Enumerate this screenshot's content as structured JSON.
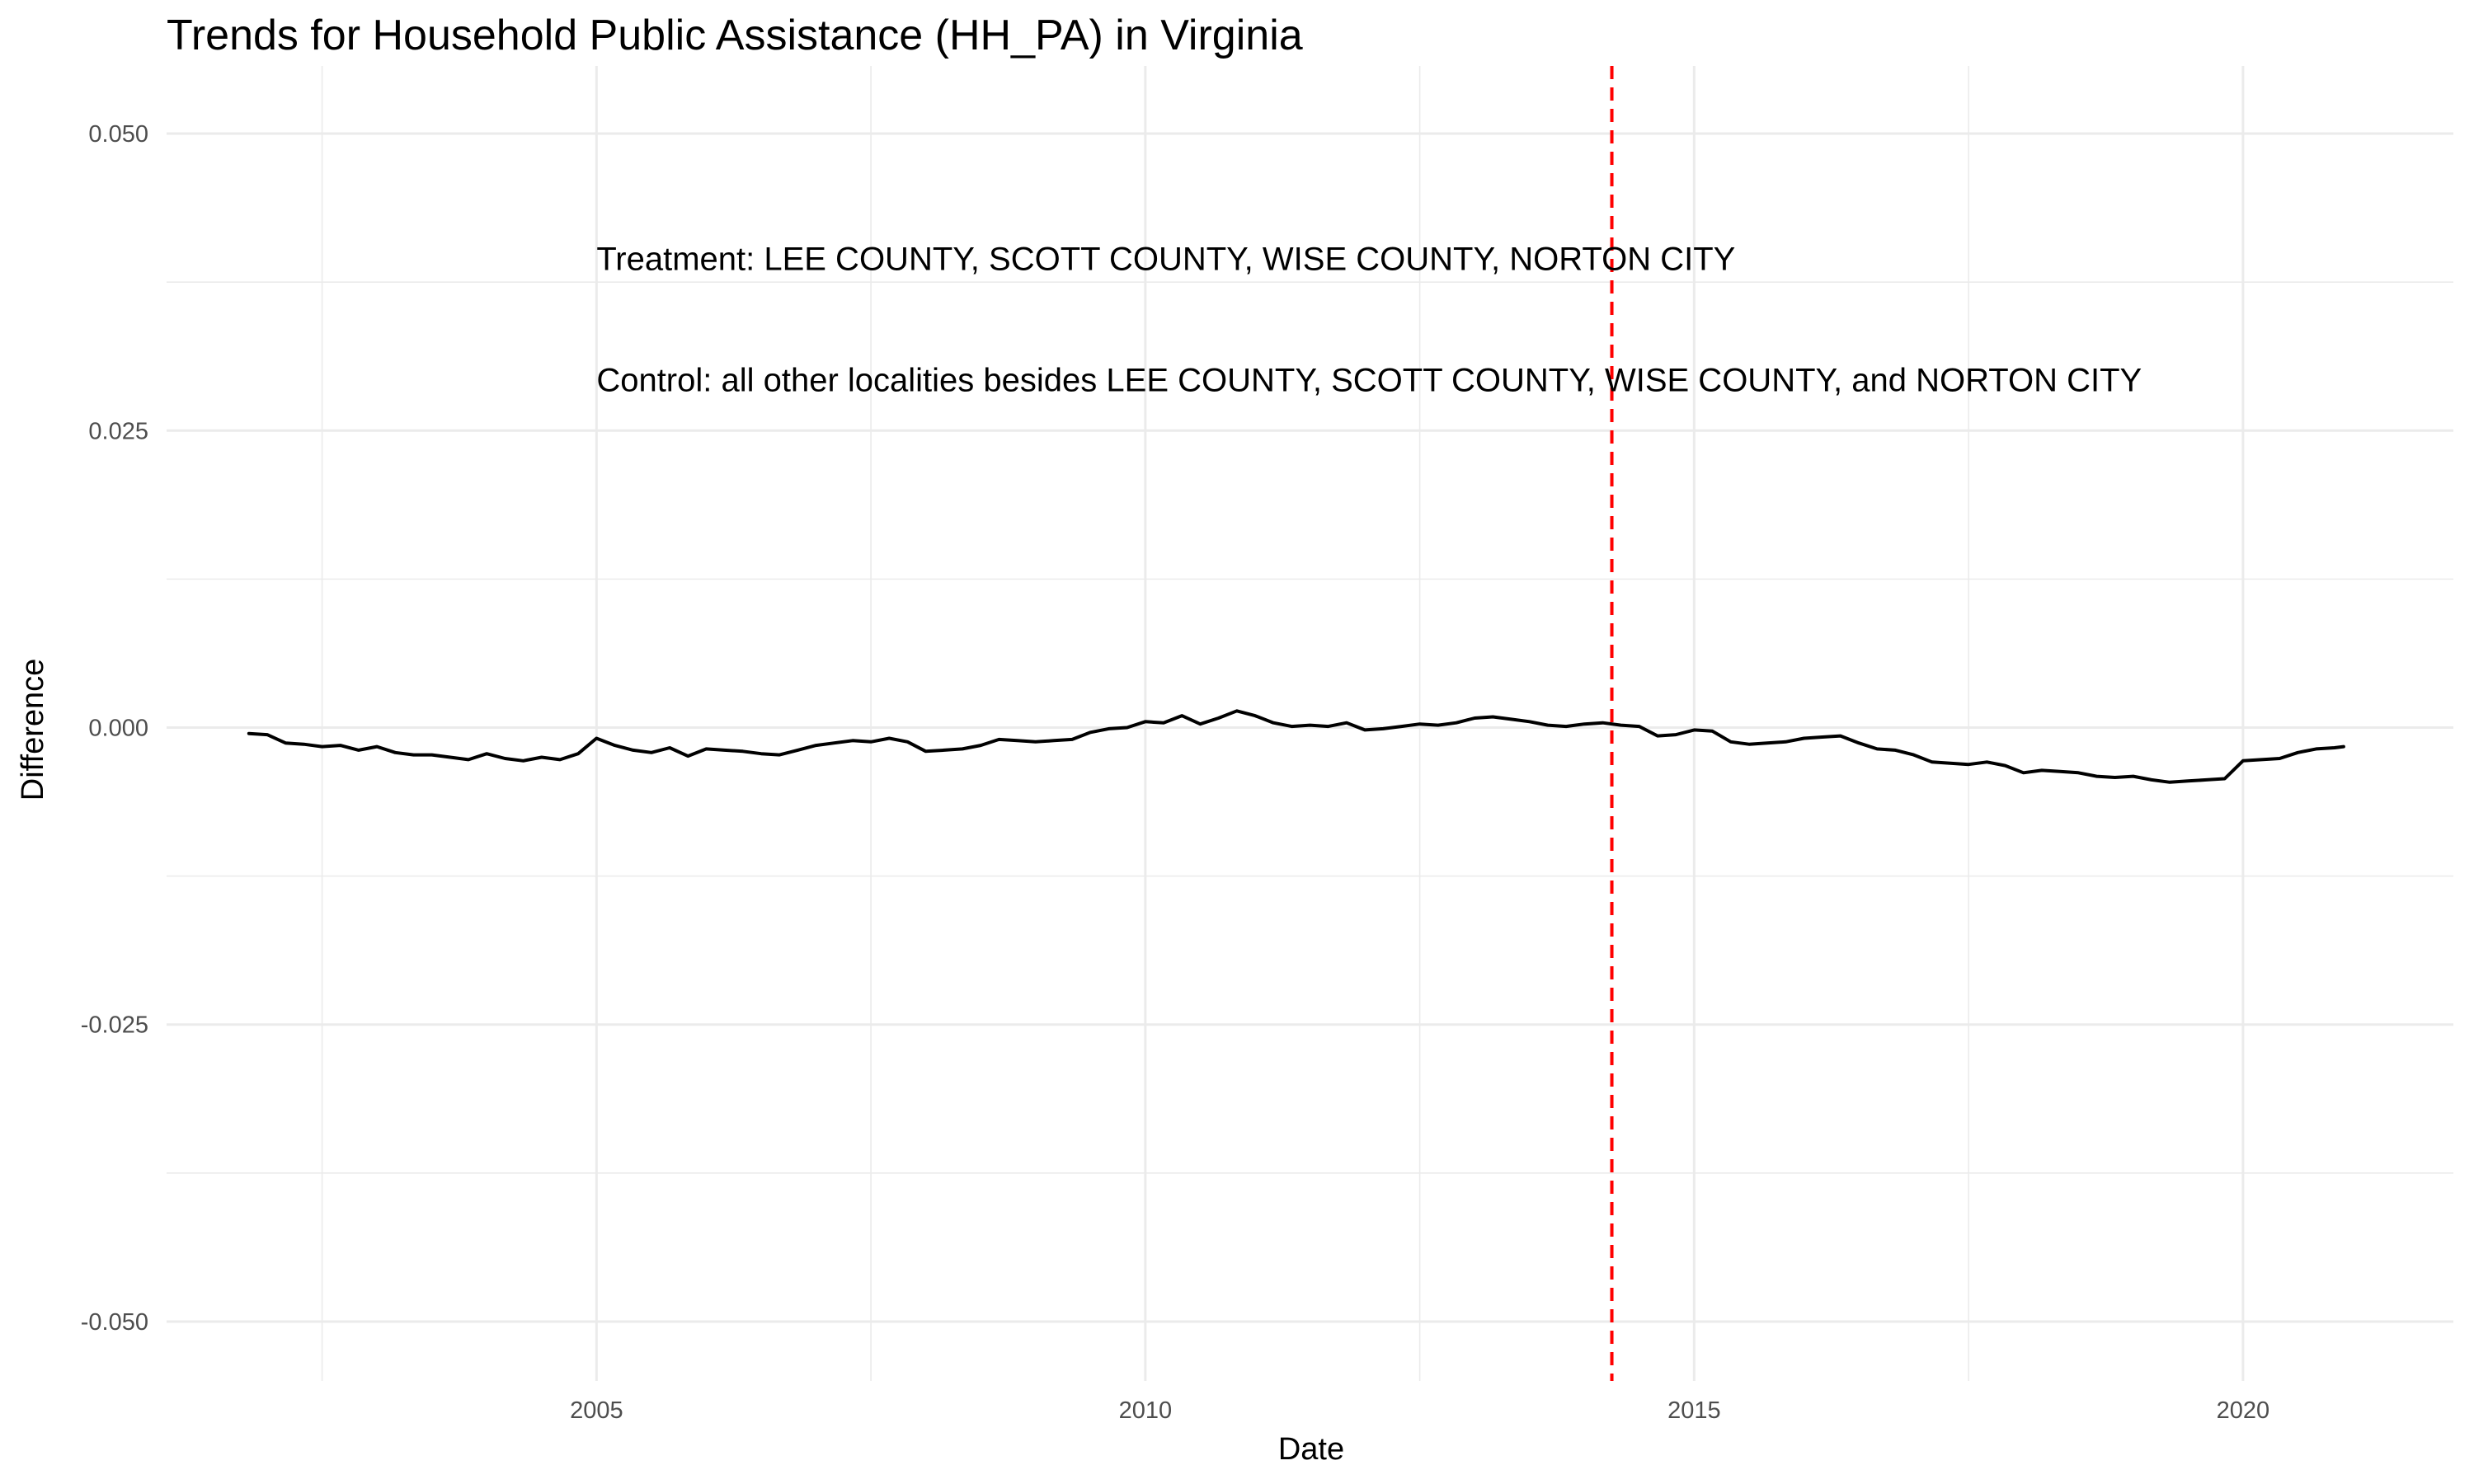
{
  "chart_data": {
    "type": "line",
    "title": "Trends for Household Public Assistance (HH_PA) in Virginia",
    "xlabel": "Date",
    "ylabel": "Difference",
    "xlim": [
      "2001-02-01",
      "2021-12-01"
    ],
    "ylim": [
      -0.055,
      0.055
    ],
    "x_ticks": [
      "2005",
      "2010",
      "2015",
      "2020"
    ],
    "y_ticks": [
      0.05,
      0.025,
      0.0,
      -0.025,
      -0.05
    ],
    "y_tick_labels": [
      "0.050",
      "0.025",
      "0.000",
      "-0.025",
      "-0.050"
    ],
    "grid": true,
    "series": [
      {
        "color": "#000000",
        "points": [
          [
            "2001-11",
            -0.0005
          ],
          [
            "2002-01",
            -0.0006
          ],
          [
            "2002-03",
            -0.0013
          ],
          [
            "2002-05",
            -0.0014
          ],
          [
            "2002-07",
            -0.0016
          ],
          [
            "2002-09",
            -0.0015
          ],
          [
            "2002-11",
            -0.0019
          ],
          [
            "2003-01",
            -0.0016
          ],
          [
            "2003-03",
            -0.0021
          ],
          [
            "2003-05",
            -0.0023
          ],
          [
            "2003-07",
            -0.0023
          ],
          [
            "2003-09",
            -0.0025
          ],
          [
            "2003-11",
            -0.0027
          ],
          [
            "2004-01",
            -0.0022
          ],
          [
            "2004-03",
            -0.0026
          ],
          [
            "2004-05",
            -0.0028
          ],
          [
            "2004-07",
            -0.0025
          ],
          [
            "2004-09",
            -0.0027
          ],
          [
            "2004-11",
            -0.0022
          ],
          [
            "2005-01",
            -0.0009
          ],
          [
            "2005-03",
            -0.0015
          ],
          [
            "2005-05",
            -0.0019
          ],
          [
            "2005-07",
            -0.0021
          ],
          [
            "2005-09",
            -0.0017
          ],
          [
            "2005-11",
            -0.0024
          ],
          [
            "2006-01",
            -0.0018
          ],
          [
            "2006-03",
            -0.0019
          ],
          [
            "2006-05",
            -0.002
          ],
          [
            "2006-07",
            -0.0022
          ],
          [
            "2006-09",
            -0.0023
          ],
          [
            "2006-11",
            -0.0019
          ],
          [
            "2007-01",
            -0.0015
          ],
          [
            "2007-03",
            -0.0013
          ],
          [
            "2007-05",
            -0.0011
          ],
          [
            "2007-07",
            -0.0012
          ],
          [
            "2007-09",
            -0.0009
          ],
          [
            "2007-11",
            -0.0012
          ],
          [
            "2008-01",
            -0.002
          ],
          [
            "2008-03",
            -0.0019
          ],
          [
            "2008-05",
            -0.0018
          ],
          [
            "2008-07",
            -0.0015
          ],
          [
            "2008-09",
            -0.001
          ],
          [
            "2008-11",
            -0.0011
          ],
          [
            "2009-01",
            -0.0012
          ],
          [
            "2009-03",
            -0.0011
          ],
          [
            "2009-05",
            -0.001
          ],
          [
            "2009-07",
            -0.0004
          ],
          [
            "2009-09",
            -0.0001
          ],
          [
            "2009-11",
            0.0
          ],
          [
            "2010-01",
            0.0005
          ],
          [
            "2010-03",
            0.0004
          ],
          [
            "2010-05",
            0.001
          ],
          [
            "2010-07",
            0.0003
          ],
          [
            "2010-09",
            0.0008
          ],
          [
            "2010-11",
            0.0014
          ],
          [
            "2011-01",
            0.001
          ],
          [
            "2011-03",
            0.0004
          ],
          [
            "2011-05",
            0.0001
          ],
          [
            "2011-07",
            0.0002
          ],
          [
            "2011-09",
            0.0001
          ],
          [
            "2011-11",
            0.0004
          ],
          [
            "2012-01",
            -0.0002
          ],
          [
            "2012-03",
            -0.0001
          ],
          [
            "2012-05",
            0.0001
          ],
          [
            "2012-07",
            0.0003
          ],
          [
            "2012-09",
            0.0002
          ],
          [
            "2012-11",
            0.0004
          ],
          [
            "2013-01",
            0.0008
          ],
          [
            "2013-03",
            0.0009
          ],
          [
            "2013-05",
            0.0007
          ],
          [
            "2013-07",
            0.0005
          ],
          [
            "2013-09",
            0.0002
          ],
          [
            "2013-11",
            0.0001
          ],
          [
            "2014-01",
            0.0003
          ],
          [
            "2014-03",
            0.0004
          ],
          [
            "2014-05",
            0.0002
          ],
          [
            "2014-07",
            0.0001
          ],
          [
            "2014-09",
            -0.0007
          ],
          [
            "2014-11",
            -0.0006
          ],
          [
            "2015-01",
            -0.0002
          ],
          [
            "2015-03",
            -0.0003
          ],
          [
            "2015-05",
            -0.0012
          ],
          [
            "2015-07",
            -0.0014
          ],
          [
            "2015-09",
            -0.0013
          ],
          [
            "2015-11",
            -0.0012
          ],
          [
            "2016-01",
            -0.0009
          ],
          [
            "2016-03",
            -0.0008
          ],
          [
            "2016-05",
            -0.0007
          ],
          [
            "2016-07",
            -0.0013
          ],
          [
            "2016-09",
            -0.0018
          ],
          [
            "2016-11",
            -0.0019
          ],
          [
            "2017-01",
            -0.0023
          ],
          [
            "2017-03",
            -0.0029
          ],
          [
            "2017-05",
            -0.003
          ],
          [
            "2017-07",
            -0.0031
          ],
          [
            "2017-09",
            -0.0029
          ],
          [
            "2017-11",
            -0.0032
          ],
          [
            "2018-01",
            -0.0038
          ],
          [
            "2018-03",
            -0.0036
          ],
          [
            "2018-05",
            -0.0037
          ],
          [
            "2018-07",
            -0.0038
          ],
          [
            "2018-09",
            -0.0041
          ],
          [
            "2018-11",
            -0.0042
          ],
          [
            "2019-01",
            -0.0041
          ],
          [
            "2019-03",
            -0.0044
          ],
          [
            "2019-05",
            -0.0046
          ],
          [
            "2019-07",
            -0.0045
          ],
          [
            "2019-09",
            -0.0044
          ],
          [
            "2019-11",
            -0.0043
          ],
          [
            "2020-01",
            -0.0028
          ],
          [
            "2020-03",
            -0.0027
          ],
          [
            "2020-05",
            -0.0026
          ],
          [
            "2020-07",
            -0.0021
          ],
          [
            "2020-09",
            -0.0018
          ],
          [
            "2020-11",
            -0.0017
          ],
          [
            "2020-12",
            -0.0016
          ]
        ]
      }
    ],
    "reference_line": {
      "x": "2014-04",
      "color": "#ff0000",
      "style": "dashed"
    },
    "annotations": [
      {
        "text": "Treatment: LEE COUNTY, SCOTT COUNTY, WISE COUNTY, NORTON CITY",
        "x": "2005-01",
        "y": 0.0395
      },
      {
        "text": "Control: all other localities besides LEE COUNTY, SCOTT COUNTY, WISE COUNTY, and NORTON CITY",
        "x": "2005-01",
        "y": 0.0293
      }
    ]
  }
}
